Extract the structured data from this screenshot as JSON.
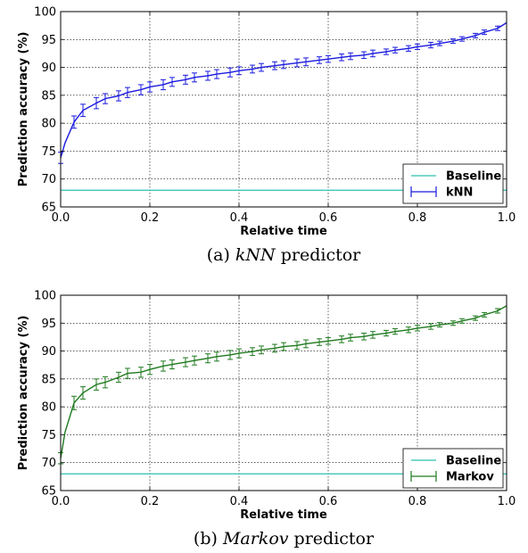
{
  "chart_data": [
    {
      "type": "line",
      "panel_caption_prefix": "(a)",
      "panel_caption_italic": "kNN",
      "panel_caption_suffix": "predictor",
      "xlabel": "Relative time",
      "ylabel": "Prediction accuracy (%)",
      "xlim": [
        0.0,
        1.0
      ],
      "ylim": [
        65,
        100
      ],
      "xticks": [
        "0.0",
        "0.2",
        "0.4",
        "0.6",
        "0.8",
        "1.0"
      ],
      "yticks": [
        "65",
        "70",
        "75",
        "80",
        "85",
        "90",
        "95",
        "100"
      ],
      "grid": true,
      "legend_position": "lower right",
      "series_color": "#1a1adf",
      "baseline_color": "#2cc1b0",
      "series": [
        {
          "name": "kNN",
          "type": "line-errorbar",
          "x": [
            0.0,
            0.01,
            0.03,
            0.05,
            0.08,
            0.1,
            0.13,
            0.15,
            0.18,
            0.2,
            0.23,
            0.25,
            0.28,
            0.3,
            0.33,
            0.35,
            0.38,
            0.4,
            0.43,
            0.45,
            0.48,
            0.5,
            0.53,
            0.55,
            0.58,
            0.6,
            0.63,
            0.65,
            0.68,
            0.7,
            0.73,
            0.75,
            0.78,
            0.8,
            0.83,
            0.85,
            0.88,
            0.9,
            0.93,
            0.95,
            0.98,
            1.0
          ],
          "y": [
            73.8,
            76.5,
            80.2,
            82.3,
            83.6,
            84.4,
            84.9,
            85.5,
            86.0,
            86.5,
            86.9,
            87.4,
            87.8,
            88.2,
            88.5,
            88.8,
            89.1,
            89.4,
            89.7,
            90.0,
            90.3,
            90.5,
            90.8,
            91.0,
            91.3,
            91.5,
            91.8,
            92.0,
            92.2,
            92.5,
            92.8,
            93.1,
            93.4,
            93.7,
            94.0,
            94.3,
            94.7,
            95.1,
            95.7,
            96.3,
            97.0,
            98.0
          ],
          "err": [
            1.0,
            0,
            1.1,
            1.1,
            1.0,
            0.9,
            0.9,
            0.9,
            0.9,
            0.9,
            0.9,
            0.8,
            0.8,
            0.8,
            0.8,
            0.8,
            0.8,
            0.7,
            0.7,
            0.7,
            0.7,
            0.7,
            0.7,
            0.7,
            0.6,
            0.6,
            0.6,
            0.6,
            0.6,
            0.6,
            0.5,
            0.5,
            0.5,
            0.5,
            0.5,
            0.4,
            0.4,
            0.4,
            0.4,
            0.4,
            0.4,
            0
          ]
        },
        {
          "name": "Baseline",
          "type": "hline",
          "y": 68.0
        }
      ]
    },
    {
      "type": "line",
      "panel_caption_prefix": "(b)",
      "panel_caption_italic": "Markov",
      "panel_caption_suffix": "predictor",
      "xlabel": "Relative time",
      "ylabel": "Prediction accuracy (%)",
      "xlim": [
        0.0,
        1.0
      ],
      "ylim": [
        65,
        100
      ],
      "xticks": [
        "0.0",
        "0.2",
        "0.4",
        "0.6",
        "0.8",
        "1.0"
      ],
      "yticks": [
        "65",
        "70",
        "75",
        "80",
        "85",
        "90",
        "95",
        "100"
      ],
      "grid": true,
      "legend_position": "lower right",
      "series_color": "#1f7a1f",
      "baseline_color": "#2cc1b0",
      "series": [
        {
          "name": "Markov",
          "type": "line-errorbar",
          "x": [
            0.0,
            0.01,
            0.03,
            0.05,
            0.08,
            0.1,
            0.13,
            0.15,
            0.18,
            0.2,
            0.23,
            0.25,
            0.28,
            0.3,
            0.33,
            0.35,
            0.38,
            0.4,
            0.43,
            0.45,
            0.48,
            0.5,
            0.53,
            0.55,
            0.58,
            0.6,
            0.63,
            0.65,
            0.68,
            0.7,
            0.73,
            0.75,
            0.78,
            0.8,
            0.83,
            0.85,
            0.88,
            0.9,
            0.93,
            0.95,
            0.98,
            1.0
          ],
          "y": [
            70.8,
            75.5,
            80.7,
            82.5,
            84.0,
            84.4,
            85.3,
            86.0,
            86.2,
            86.7,
            87.3,
            87.6,
            88.0,
            88.3,
            88.7,
            89.0,
            89.3,
            89.6,
            89.9,
            90.2,
            90.5,
            90.8,
            91.0,
            91.3,
            91.6,
            91.8,
            92.1,
            92.4,
            92.6,
            92.9,
            93.2,
            93.5,
            93.8,
            94.1,
            94.4,
            94.7,
            95.0,
            95.4,
            95.9,
            96.5,
            97.2,
            98.1
          ],
          "err": [
            1.0,
            0,
            1.2,
            1.1,
            1.0,
            1.0,
            0.9,
            0.9,
            0.9,
            0.9,
            0.9,
            0.8,
            0.8,
            0.8,
            0.8,
            0.8,
            0.8,
            0.8,
            0.7,
            0.7,
            0.7,
            0.7,
            0.7,
            0.7,
            0.6,
            0.6,
            0.6,
            0.6,
            0.6,
            0.6,
            0.5,
            0.5,
            0.5,
            0.5,
            0.5,
            0.4,
            0.4,
            0.4,
            0.4,
            0.4,
            0.4,
            0
          ]
        },
        {
          "name": "Baseline",
          "type": "hline",
          "y": 68.0
        }
      ]
    }
  ]
}
